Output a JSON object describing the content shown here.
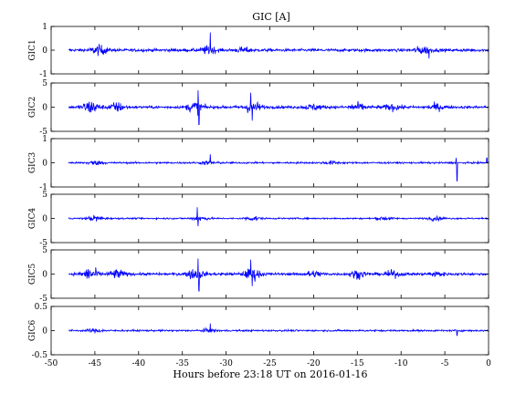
{
  "figure": {
    "title": "GIC [A]",
    "xlabel": "Hours before  23:18 UT on 2016-01-16"
  },
  "chart_data": [
    {
      "type": "line",
      "title": "GIC [A]",
      "ylabel": "GIC1",
      "xlim": [
        -50,
        0
      ],
      "ylim": [
        -1,
        1
      ],
      "yticks": [
        "-1",
        "0",
        "1"
      ],
      "xticks": [
        "-50",
        "-45",
        "-40",
        "-35",
        "-30",
        "-25",
        "-20",
        "-15",
        "-10",
        "-5",
        "0"
      ],
      "grid": false,
      "color": "#0000ff",
      "series": [
        {
          "x_range": [
            -48,
            0
          ],
          "amplitude": 0.1,
          "bursts": [
            {
              "x": -44.5,
              "a": 0.3
            },
            {
              "x": -32,
              "a": 0.25
            },
            {
              "x": -28,
              "a": 0.15
            },
            {
              "x": -7.5,
              "a": 0.25
            }
          ],
          "spikes": [
            {
              "x": -31.8,
              "y": 0.75
            },
            {
              "x": -6.8,
              "y": -0.35
            }
          ]
        }
      ]
    },
    {
      "type": "line",
      "ylabel": "GIC2",
      "xlim": [
        -50,
        0
      ],
      "ylim": [
        -5,
        5
      ],
      "yticks": [
        "-5",
        "0",
        "5"
      ],
      "xticks": [
        "-50",
        "-45",
        "-40",
        "-35",
        "-30",
        "-25",
        "-20",
        "-15",
        "-10",
        "-5",
        "0"
      ],
      "grid": false,
      "color": "#0000ff",
      "series": [
        {
          "x_range": [
            -48,
            0
          ],
          "amplitude": 0.45,
          "bursts": [
            {
              "x": -45.5,
              "a": 2.2
            },
            {
              "x": -42.5,
              "a": 1.5
            },
            {
              "x": -33.5,
              "a": 2.0
            },
            {
              "x": -27,
              "a": 2.0
            },
            {
              "x": -20,
              "a": 1.0
            },
            {
              "x": -15,
              "a": 1.3
            },
            {
              "x": -11,
              "a": 1.0
            },
            {
              "x": -6,
              "a": 1.0
            }
          ],
          "spikes": [
            {
              "x": -33.2,
              "y": 3.5
            },
            {
              "x": -33.1,
              "y": -3.6
            },
            {
              "x": -27.2,
              "y": 3.0
            },
            {
              "x": -27.0,
              "y": -2.8
            }
          ]
        }
      ]
    },
    {
      "type": "line",
      "ylabel": "GIC3",
      "xlim": [
        -50,
        0
      ],
      "ylim": [
        -1,
        1
      ],
      "yticks": [
        "-1",
        "0",
        "1"
      ],
      "xticks": [
        "-50",
        "-45",
        "-40",
        "-35",
        "-30",
        "-25",
        "-20",
        "-15",
        "-10",
        "-5",
        "0"
      ],
      "grid": false,
      "color": "#0000ff",
      "series": [
        {
          "x_range": [
            -48,
            0
          ],
          "amplitude": 0.06,
          "bursts": [
            {
              "x": -45,
              "a": 0.12
            },
            {
              "x": -32,
              "a": 0.1
            },
            {
              "x": -18,
              "a": 0.1
            }
          ],
          "spikes": [
            {
              "x": -31.8,
              "y": 0.35
            },
            {
              "x": -3.6,
              "y": -0.75
            },
            {
              "x": -3.7,
              "y": 0.2
            },
            {
              "x": -0.2,
              "y": 0.2
            }
          ]
        }
      ]
    },
    {
      "type": "line",
      "ylabel": "GIC4",
      "xlim": [
        -50,
        0
      ],
      "ylim": [
        -5,
        5
      ],
      "yticks": [
        "-5",
        "0",
        "5"
      ],
      "xticks": [
        "-50",
        "-45",
        "-40",
        "-35",
        "-30",
        "-25",
        "-20",
        "-15",
        "-10",
        "-5",
        "0"
      ],
      "grid": false,
      "color": "#0000ff",
      "series": [
        {
          "x_range": [
            -48,
            0
          ],
          "amplitude": 0.25,
          "bursts": [
            {
              "x": -45,
              "a": 0.9
            },
            {
              "x": -33,
              "a": 0.8
            },
            {
              "x": -27,
              "a": 0.7
            },
            {
              "x": -12,
              "a": 0.6
            },
            {
              "x": -6,
              "a": 0.6
            }
          ],
          "spikes": [
            {
              "x": -33.3,
              "y": 2.3
            },
            {
              "x": -33.2,
              "y": -1.6
            }
          ]
        }
      ]
    },
    {
      "type": "line",
      "ylabel": "GIC5",
      "xlim": [
        -50,
        0
      ],
      "ylim": [
        -5,
        5
      ],
      "yticks": [
        "-5",
        "0",
        "5"
      ],
      "xticks": [
        "-50",
        "-45",
        "-40",
        "-35",
        "-30",
        "-25",
        "-20",
        "-15",
        "-10",
        "-5",
        "0"
      ],
      "grid": false,
      "color": "#0000ff",
      "series": [
        {
          "x_range": [
            -48,
            0
          ],
          "amplitude": 0.45,
          "bursts": [
            {
              "x": -45.5,
              "a": 2.0
            },
            {
              "x": -42.5,
              "a": 1.4
            },
            {
              "x": -33.5,
              "a": 1.8
            },
            {
              "x": -27,
              "a": 1.8
            },
            {
              "x": -20,
              "a": 1.0
            },
            {
              "x": -15,
              "a": 1.2
            },
            {
              "x": -11,
              "a": 1.0
            },
            {
              "x": -6,
              "a": 0.8
            }
          ],
          "spikes": [
            {
              "x": -33.2,
              "y": 3.2
            },
            {
              "x": -33.1,
              "y": -3.5
            },
            {
              "x": -27.2,
              "y": 3.0
            },
            {
              "x": -27.0,
              "y": -2.5
            }
          ]
        }
      ]
    },
    {
      "type": "line",
      "ylabel": "GIC6",
      "xlim": [
        -50,
        0
      ],
      "ylim": [
        -0.5,
        0.5
      ],
      "yticks": [
        "-0.5",
        "0",
        "0.5"
      ],
      "xticks": [
        "-50",
        "-45",
        "-40",
        "-35",
        "-30",
        "-25",
        "-20",
        "-15",
        "-10",
        "-5",
        "0"
      ],
      "grid": false,
      "color": "#0000ff",
      "series": [
        {
          "x_range": [
            -48,
            0
          ],
          "amplitude": 0.03,
          "bursts": [
            {
              "x": -45,
              "a": 0.05
            },
            {
              "x": -32,
              "a": 0.04
            }
          ],
          "spikes": [
            {
              "x": -31.8,
              "y": 0.15
            },
            {
              "x": -3.6,
              "y": -0.1
            }
          ]
        }
      ]
    }
  ]
}
